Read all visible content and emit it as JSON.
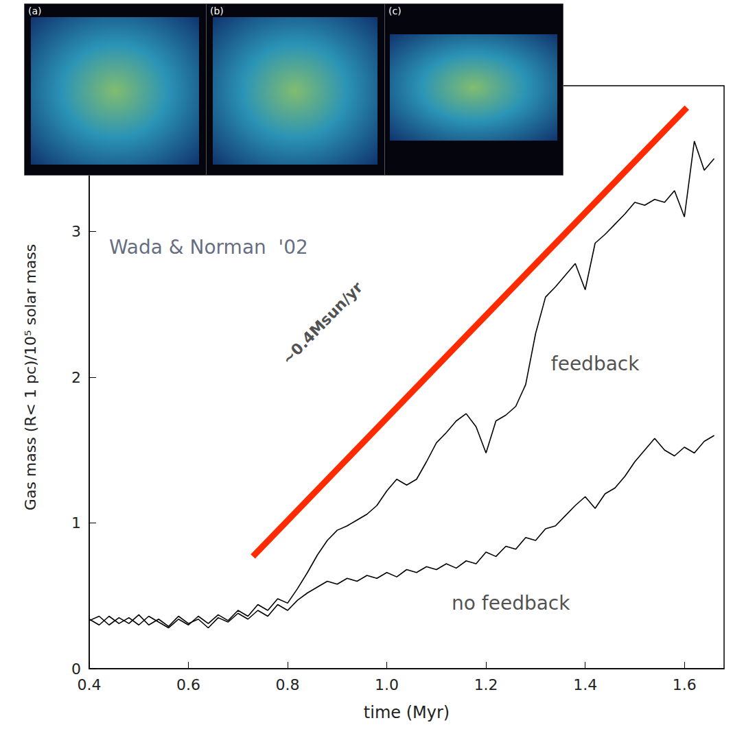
{
  "chart_data": {
    "type": "line",
    "x_label": "time (Myr)",
    "y_label": "Gas mass (R< 1 pc)/10⁵ solar mass",
    "xlim": [
      0.4,
      1.68
    ],
    "xticks": [
      0.4,
      0.6,
      0.8,
      {
        "value": 1,
        "label": "1.0"
      },
      1.2,
      1.4,
      1.6
    ],
    "ylim": [
      0,
      4
    ],
    "yticks": [
      0,
      1,
      2,
      3
    ],
    "grid": false,
    "x": [
      0.4,
      0.42,
      0.44,
      0.46,
      0.48,
      0.5,
      0.52,
      0.54,
      0.56,
      0.58,
      0.6,
      0.62,
      0.64,
      0.66,
      0.68,
      0.7,
      0.72,
      0.74,
      0.76,
      0.78,
      0.8,
      0.82,
      0.84,
      0.86,
      0.88,
      0.9,
      0.92,
      0.94,
      0.96,
      0.98,
      1.0,
      1.02,
      1.04,
      1.06,
      1.08,
      1.1,
      1.12,
      1.14,
      1.16,
      1.18,
      1.2,
      1.22,
      1.24,
      1.26,
      1.28,
      1.3,
      1.32,
      1.34,
      1.36,
      1.38,
      1.4,
      1.42,
      1.44,
      1.46,
      1.48,
      1.5,
      1.52,
      1.54,
      1.56,
      1.58,
      1.6,
      1.62,
      1.64,
      1.66
    ],
    "series": [
      {
        "name": "no feedback",
        "color": "#000000",
        "values": [
          0.33,
          0.36,
          0.3,
          0.35,
          0.31,
          0.37,
          0.3,
          0.34,
          0.29,
          0.36,
          0.31,
          0.34,
          0.28,
          0.35,
          0.32,
          0.38,
          0.34,
          0.4,
          0.36,
          0.44,
          0.4,
          0.47,
          0.52,
          0.56,
          0.6,
          0.58,
          0.62,
          0.6,
          0.64,
          0.62,
          0.66,
          0.63,
          0.68,
          0.66,
          0.7,
          0.68,
          0.72,
          0.69,
          0.74,
          0.72,
          0.8,
          0.77,
          0.84,
          0.82,
          0.9,
          0.88,
          0.96,
          0.98,
          1.05,
          1.12,
          1.18,
          1.1,
          1.2,
          1.24,
          1.32,
          1.42,
          1.5,
          1.58,
          1.5,
          1.46,
          1.52,
          1.48,
          1.56,
          1.6
        ]
      },
      {
        "name": "feedback",
        "color": "#000000",
        "values": [
          0.34,
          0.3,
          0.36,
          0.31,
          0.35,
          0.3,
          0.36,
          0.32,
          0.28,
          0.34,
          0.3,
          0.36,
          0.31,
          0.37,
          0.33,
          0.4,
          0.36,
          0.44,
          0.4,
          0.48,
          0.45,
          0.55,
          0.66,
          0.78,
          0.88,
          0.95,
          0.98,
          1.02,
          1.06,
          1.12,
          1.22,
          1.3,
          1.26,
          1.3,
          1.42,
          1.55,
          1.62,
          1.7,
          1.75,
          1.66,
          1.48,
          1.7,
          1.74,
          1.8,
          1.95,
          2.3,
          2.55,
          2.62,
          2.7,
          2.78,
          2.6,
          2.92,
          2.98,
          3.05,
          3.12,
          3.2,
          3.18,
          3.22,
          3.2,
          3.28,
          3.1,
          3.62,
          3.42,
          3.5
        ]
      }
    ],
    "trend_line": {
      "x": [
        0.73,
        1.605
      ],
      "y": [
        0.77,
        3.85
      ],
      "color": "#ff2b00"
    },
    "annotations": [
      {
        "text": "Wada & Norman  '02",
        "x": 0.44,
        "y": 2.89
      },
      {
        "text": "feedback",
        "x": 1.42,
        "y": 2.09
      },
      {
        "text": "no feedback",
        "x": 1.25,
        "y": 0.45
      },
      {
        "text": "~0.4Msun/yr",
        "x": 0.87,
        "y": 2.37
      }
    ],
    "inset_panels": [
      "(a)",
      "(b)",
      "(c)"
    ]
  }
}
